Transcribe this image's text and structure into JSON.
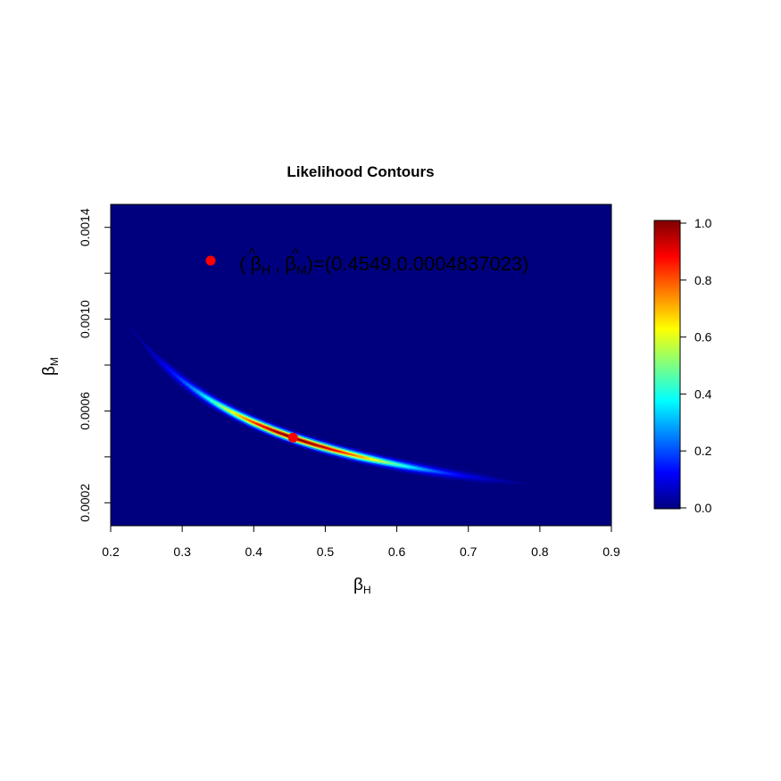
{
  "chart_data": {
    "type": "heatmap",
    "title": "Likelihood Contours",
    "xlabel": "β",
    "xlabel_sub": "H",
    "ylabel": "β",
    "ylabel_sub": "M",
    "xlim": [
      0.2,
      0.9
    ],
    "ylim": [
      0.0001,
      0.0015
    ],
    "x_ticks": [
      0.2,
      0.3,
      0.4,
      0.5,
      0.6,
      0.7,
      0.8,
      0.9
    ],
    "x_tick_labels": [
      "0.2",
      "0.3",
      "0.4",
      "0.5",
      "0.6",
      "0.7",
      "0.8",
      "0.9"
    ],
    "y_ticks": [
      0.0002,
      0.0004,
      0.0006,
      0.0008,
      0.001,
      0.0012,
      0.0014
    ],
    "y_labeled_ticks": [
      0.0002,
      0.0006,
      0.001,
      0.0014
    ],
    "y_tick_labels": [
      "0.0002",
      "0.0006",
      "0.0010",
      "0.0014"
    ],
    "background_color": "#00007F",
    "colormap": "jet",
    "ridge": {
      "x_range": [
        0.23,
        0.81
      ],
      "product_x_y": 0.00022,
      "peak": [
        0.4549,
        0.0004837023
      ]
    },
    "mle_point": {
      "x": 0.4549,
      "y": 0.0004837023,
      "color": "#FF0000"
    },
    "legend": {
      "label_prefix": "(",
      "beta_symbol": "β",
      "hat_symbol": "^",
      "sub_h": "H",
      "sub_m": "M",
      "separator": ",",
      "label_suffix": ")=(0.4549,0.0004837023)",
      "marker_color": "#FF0000"
    },
    "colorbar": {
      "range": [
        0,
        1
      ],
      "ticks": [
        0.0,
        0.2,
        0.4,
        0.6,
        0.8,
        1.0
      ],
      "tick_labels": [
        "0.0",
        "0.2",
        "0.4",
        "0.6",
        "0.8",
        "1.0"
      ]
    }
  }
}
